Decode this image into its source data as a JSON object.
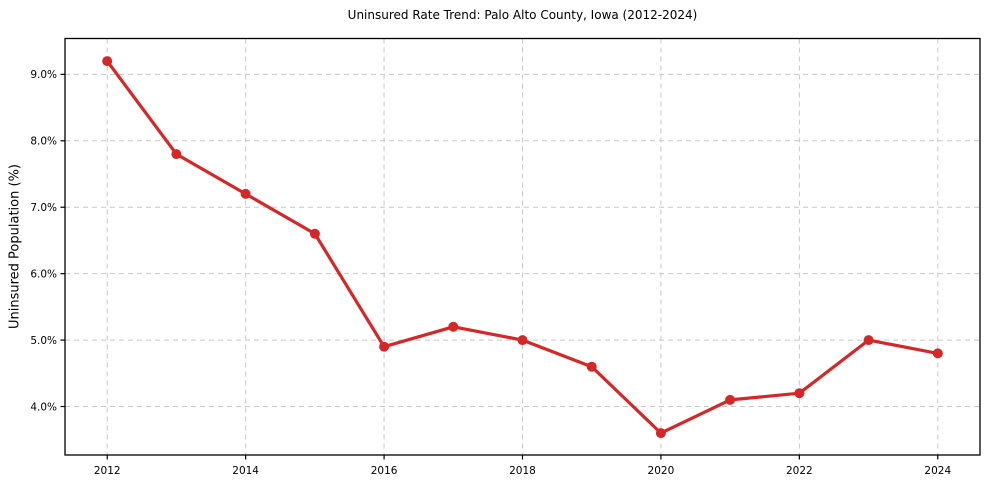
{
  "chart_data": {
    "type": "line",
    "title": "Uninsured Rate Trend: Palo Alto County, Iowa (2012-2024)",
    "xlabel": "",
    "ylabel": "Uninsured Population (%)",
    "x": [
      2012,
      2013,
      2014,
      2015,
      2016,
      2017,
      2018,
      2019,
      2020,
      2021,
      2022,
      2023,
      2024
    ],
    "values": [
      9.2,
      7.8,
      7.2,
      6.6,
      4.9,
      5.2,
      5.0,
      4.6,
      3.6,
      4.1,
      4.2,
      5.0,
      4.8
    ],
    "xlim": [
      2011.39,
      2024.61
    ],
    "ylim": [
      3.27,
      9.54
    ],
    "xticks": [
      2012,
      2014,
      2016,
      2018,
      2020,
      2022,
      2024
    ],
    "xtick_labels": [
      "2012",
      "2014",
      "2016",
      "2018",
      "2020",
      "2022",
      "2024"
    ],
    "yticks": [
      4.0,
      5.0,
      6.0,
      7.0,
      8.0,
      9.0
    ],
    "ytick_labels": [
      "4.0%",
      "5.0%",
      "6.0%",
      "7.0%",
      "8.0%",
      "9.0%"
    ],
    "grid": true,
    "grid_style": "dashed",
    "legend": "none",
    "colors": {
      "line": "#d62728",
      "marker": "#d62728",
      "grid": "#c8c8c8",
      "axis": "#000000",
      "text": "#000000",
      "background": "#ffffff"
    }
  }
}
